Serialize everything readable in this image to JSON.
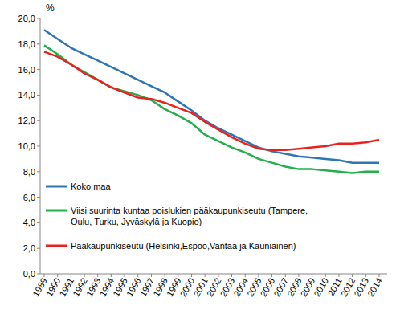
{
  "chart_data": {
    "type": "line",
    "y_label": "%",
    "categories": [
      "1989",
      "1990",
      "1991",
      "1992",
      "1993",
      "1994",
      "1995",
      "1996",
      "1997",
      "1998",
      "1999",
      "2000",
      "2001",
      "2002",
      "2003",
      "2004",
      "2005",
      "2006",
      "2007",
      "2008",
      "2009",
      "2010",
      "2011",
      "2012",
      "2013",
      "2014"
    ],
    "series": [
      {
        "name": "Koko maa",
        "color": "#2e75b6",
        "values": [
          19.1,
          18.4,
          17.7,
          17.2,
          16.7,
          16.2,
          15.7,
          15.2,
          14.7,
          14.2,
          13.5,
          12.8,
          12.0,
          11.4,
          10.9,
          10.4,
          9.9,
          9.6,
          9.4,
          9.2,
          9.1,
          9.0,
          8.9,
          8.7,
          8.7,
          8.7
        ]
      },
      {
        "name": "Viisi suurinta kuntaa poislukien pääkaupunkiseutu (Tampere, Oulu, Turku, Jyväskylä ja Kuopio)",
        "color": "#21b04b",
        "values": [
          17.9,
          17.2,
          16.4,
          15.8,
          15.2,
          14.6,
          14.3,
          14.0,
          13.6,
          12.9,
          12.4,
          11.8,
          10.9,
          10.4,
          9.9,
          9.5,
          9.0,
          8.7,
          8.4,
          8.2,
          8.2,
          8.1,
          8.0,
          7.9,
          8.0,
          8.0
        ]
      },
      {
        "name": "Pääkaupunkiseutu (Helsinki,Espoo,Vantaa ja Kauniainen)",
        "color": "#e8231f",
        "values": [
          17.4,
          17.0,
          16.4,
          15.7,
          15.2,
          14.6,
          14.2,
          13.8,
          13.7,
          13.4,
          13.0,
          12.6,
          11.9,
          11.3,
          10.7,
          10.2,
          9.8,
          9.7,
          9.7,
          9.8,
          9.9,
          10.0,
          10.2,
          10.2,
          10.3,
          10.5
        ]
      }
    ],
    "ylim": [
      0,
      20
    ],
    "yticks": [
      {
        "value": 0,
        "label": "0,0"
      },
      {
        "value": 2,
        "label": "2,0"
      },
      {
        "value": 4,
        "label": "4,0"
      },
      {
        "value": 6,
        "label": "6,0"
      },
      {
        "value": 8,
        "label": "8,0"
      },
      {
        "value": 10,
        "label": "10,0"
      },
      {
        "value": 12,
        "label": "12,0"
      },
      {
        "value": 14,
        "label": "14,0"
      },
      {
        "value": 16,
        "label": "16,0"
      },
      {
        "value": 18,
        "label": "18,0"
      },
      {
        "value": 20,
        "label": "20,0"
      }
    ],
    "grid": false,
    "legend": "bottom-left"
  }
}
